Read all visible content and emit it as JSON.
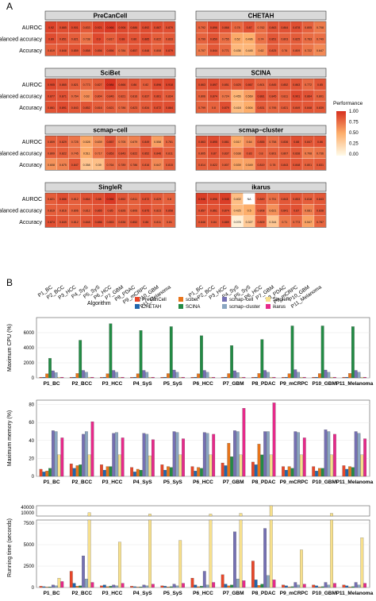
{
  "panel_labels": [
    "A",
    "B"
  ],
  "chart_data": [
    {
      "type": "heatmap",
      "id": "A",
      "row_labels": [
        "AUROC",
        "Balanced accuracy",
        "Accuracy"
      ],
      "col_labels": [
        "P1_BC",
        "P2_BCC",
        "P3_HCC",
        "P4_SyS",
        "P5_SyS",
        "P6_HCC",
        "P7_GBM",
        "P8_PDAC",
        "P9_mCRPC",
        "P10_GBM",
        "P11_Melanoma"
      ],
      "legend": {
        "title": "Performance",
        "ticks": [
          "1.00",
          "0.75",
          "0.50",
          "0.25",
          "0.00"
        ],
        "low_color": "#fffbe8",
        "high_color": "#d7301f"
      },
      "facets": [
        {
          "title": "PreCanCell",
          "values": [
            [
              0.92,
              0.885,
              0.901,
              0.833,
              0.921,
              0.966,
              0.906,
              0.886,
              0.892,
              0.887,
              0.879
            ],
            [
              0.89,
              0.851,
              0.821,
              0.738,
              0.9,
              0.817,
              0.88,
              0.86,
              0.885,
              0.822,
              0.833
            ],
            [
              0.819,
              0.848,
              0.859,
              0.858,
              0.856,
              0.856,
              0.784,
              0.857,
              0.848,
              0.808,
              0.879
            ]
          ]
        },
        {
          "title": "CHETAH",
          "values": [
            [
              0.792,
              0.896,
              0.868,
              0.78,
              0.87,
              0.762,
              0.863,
              0.864,
              0.878,
              0.805,
              0.708
            ],
            [
              0.799,
              0.859,
              0.755,
              0.52,
              0.496,
              0.74,
              0.851,
              0.803,
              0.825,
              0.763,
              0.749
            ],
            [
              0.707,
              0.844,
              0.771,
              0.436,
              0.445,
              0.62,
              0.825,
              0.76,
              0.809,
              0.722,
              0.647
            ]
          ]
        },
        {
          "title": "SciBet",
          "values": [
            [
              0.905,
              0.865,
              0.821,
              0.773,
              0.827,
              0.984,
              0.866,
              0.86,
              0.82,
              0.896,
              0.918
            ],
            [
              0.877,
              0.871,
              0.764,
              0.63,
              0.804,
              0.846,
              0.821,
              0.816,
              0.837,
              0.861,
              0.834
            ],
            [
              0.861,
              0.891,
              0.843,
              0.852,
              0.816,
              0.821,
              0.786,
              0.823,
              0.834,
              0.872,
              0.884
            ]
          ]
        },
        {
          "title": "SCINA",
          "values": [
            [
              0.863,
              0.897,
              0.851,
              0.825,
              0.867,
              0.801,
              0.845,
              0.852,
              0.863,
              0.772,
              0.85
            ],
            [
              0.806,
              0.874,
              0.724,
              0.455,
              0.569,
              0.881,
              0.845,
              0.811,
              0.901,
              0.864,
              0.801
            ],
            [
              0.799,
              0.8,
              0.879,
              0.418,
              0.504,
              0.831,
              0.795,
              0.821,
              0.849,
              0.848,
              0.839
            ]
          ]
        },
        {
          "title": "scmap−cell",
          "values": [
            [
              0.809,
              0.829,
              0.725,
              0.528,
              0.639,
              0.857,
              0.705,
              0.679,
              0.849,
              0.558,
              0.781
            ],
            [
              0.809,
              0.822,
              0.745,
              0.511,
              0.717,
              0.853,
              0.843,
              0.822,
              0.852,
              0.846,
              0.811
            ],
            [
              0.608,
              0.675,
              0.847,
              0.358,
              0.39,
              0.764,
              0.789,
              0.786,
              0.816,
              0.647,
              0.815
            ]
          ]
        },
        {
          "title": "scmap−cluster",
          "values": [
            [
              0.863,
              0.895,
              0.861,
              0.517,
              0.64,
              0.855,
              0.758,
              0.836,
              0.88,
              0.847,
              0.86
            ],
            [
              0.805,
              0.87,
              0.837,
              0.638,
              0.83,
              0.8,
              0.801,
              0.807,
              0.838,
              0.708,
              0.736
            ],
            [
              0.814,
              0.822,
              0.807,
              0.539,
              0.549,
              0.819,
              0.78,
              0.843,
              0.848,
              0.801,
              0.831
            ]
          ]
        },
        {
          "title": "SingleR",
          "values": [
            [
              0.821,
              0.886,
              0.812,
              0.864,
              0.88,
              0.966,
              0.852,
              0.811,
              0.872,
              0.829,
              0.8
            ],
            [
              0.819,
              0.816,
              0.806,
              0.812,
              0.865,
              0.85,
              0.826,
              0.806,
              0.875,
              0.823,
              0.858
            ],
            [
              0.874,
              0.849,
              0.812,
              0.848,
              0.886,
              0.853,
              0.836,
              0.852,
              0.86,
              0.811,
              0.81
            ]
          ]
        },
        {
          "title": "ikarus",
          "values": [
            [
              0.946,
              0.896,
              0.945,
              0.402,
              null,
              0.849,
              0.751,
              0.843,
              0.853,
              0.818,
              0.843
            ],
            [
              0.857,
              0.861,
              0.874,
              0.425,
              0.5,
              0.808,
              0.621,
              0.841,
              0.87,
              0.681,
              0.838
            ],
            [
              0.846,
              0.84,
              0.889,
              0.078,
              0.327,
              0.809,
              0.344,
              0.71,
              0.773,
              0.547,
              0.787
            ]
          ]
        }
      ]
    },
    {
      "type": "bar",
      "id": "B-cpu",
      "title": "",
      "ylabel": "Maximum CPU (%)",
      "ylim": [
        0,
        8000
      ],
      "yticks": [
        "0",
        "2000",
        "4000",
        "6000"
      ],
      "categories": [
        "P1_BC",
        "P2_BCC",
        "P3_HCC",
        "P4_SyS",
        "P5_SyS",
        "P6_HCC",
        "P7_GBM",
        "P8_PDAC",
        "P9_mCRPC",
        "P10_GBM",
        "P11_Melanoma"
      ],
      "series": [
        {
          "name": "PreCanCell",
          "color": "#e8472a",
          "values": [
            100,
            100,
            100,
            100,
            100,
            100,
            100,
            100,
            100,
            100,
            100
          ]
        },
        {
          "name": "CHETAH",
          "color": "#2166ac",
          "values": [
            100,
            100,
            100,
            100,
            100,
            100,
            100,
            100,
            100,
            100,
            100
          ]
        },
        {
          "name": "scibet",
          "color": "#e8741a",
          "values": [
            550,
            590,
            560,
            560,
            580,
            550,
            580,
            590,
            570,
            580,
            600
          ]
        },
        {
          "name": "SCINA",
          "color": "#238b45",
          "values": [
            2600,
            5000,
            7200,
            6300,
            6800,
            5600,
            4300,
            5100,
            6900,
            6900,
            6800
          ]
        },
        {
          "name": "scmap−cell",
          "color": "#7570b3",
          "values": [
            950,
            1000,
            1000,
            1000,
            1050,
            1000,
            950,
            1000,
            1100,
            1050,
            1000
          ]
        },
        {
          "name": "scmap−cluster",
          "color": "#8aa6c1",
          "values": [
            700,
            750,
            750,
            750,
            750,
            750,
            720,
            750,
            750,
            750,
            750
          ]
        },
        {
          "name": "SingleR",
          "color": "#f7e08d",
          "values": [
            100,
            100,
            100,
            100,
            100,
            100,
            100,
            100,
            100,
            100,
            100
          ]
        },
        {
          "name": "ikarus",
          "color": "#e7298a",
          "values": [
            100,
            100,
            100,
            100,
            100,
            100,
            100,
            100,
            100,
            100,
            100
          ]
        }
      ]
    },
    {
      "type": "bar",
      "id": "B-memory",
      "title": "",
      "ylabel": "Maximum memory (%)",
      "ylim": [
        0,
        85
      ],
      "yticks": [
        "0",
        "20",
        "40",
        "60",
        "80"
      ],
      "categories": [
        "P1_BC",
        "P2_BCC",
        "P3_HCC",
        "P4_SyS",
        "P5_SyS",
        "P6_HCC",
        "P7_GBM",
        "P8_PDAC",
        "P9_mCRPC",
        "P10_GBM",
        "P11_Melanoma"
      ],
      "series": [
        {
          "name": "PreCanCell",
          "color": "#e8472a",
          "values": [
            8,
            14,
            13,
            10,
            13,
            11,
            15,
            16,
            11,
            11,
            12
          ]
        },
        {
          "name": "CHETAH",
          "color": "#2166ac",
          "values": [
            5,
            9,
            7,
            5,
            7,
            6,
            12,
            13,
            7,
            6,
            8
          ]
        },
        {
          "name": "scibet",
          "color": "#e8741a",
          "values": [
            6,
            12,
            11,
            8,
            11,
            10,
            37,
            36,
            11,
            9,
            11
          ]
        },
        {
          "name": "SCINA",
          "color": "#238b45",
          "values": [
            9,
            13,
            11,
            7,
            10,
            9,
            22,
            24,
            9,
            9,
            10
          ]
        },
        {
          "name": "scmap−cell",
          "color": "#7570b3",
          "values": [
            51,
            47,
            48,
            48,
            50,
            49,
            51,
            50,
            50,
            52,
            50
          ]
        },
        {
          "name": "scmap−cluster",
          "color": "#8aa6c1",
          "values": [
            50,
            50,
            49,
            47,
            49,
            48,
            50,
            50,
            49,
            50,
            48
          ]
        },
        {
          "name": "SingleR",
          "color": "#f7e08d",
          "values": [
            24,
            24,
            24,
            23,
            24,
            24,
            24,
            24,
            24,
            24,
            24
          ]
        },
        {
          "name": "ikarus",
          "color": "#e7298a",
          "values": [
            43,
            61,
            43,
            41,
            42,
            47,
            76,
            82,
            43,
            47,
            42
          ]
        }
      ]
    },
    {
      "type": "bar",
      "id": "B-runtime",
      "title": "",
      "ylabel": "Running time (seconds)",
      "ylim": [
        0,
        11500
      ],
      "axis_break": [
        8000,
        10000
      ],
      "yticks": [
        "0",
        "2500",
        "5000",
        "7500",
        "10000",
        "40000"
      ],
      "categories": [
        "P1_BC",
        "P2_BCC",
        "P3_HCC",
        "P4_SyS",
        "P5_SyS",
        "P6_HCC",
        "P7_GBM",
        "P8_PDAC",
        "P9_mCRPC",
        "P10_GBM",
        "P11_Melanoma"
      ],
      "series": [
        {
          "name": "PreCanCell",
          "color": "#e8472a",
          "values": [
            150,
            1900,
            200,
            150,
            200,
            1100,
            1500,
            3100,
            300,
            300,
            300
          ]
        },
        {
          "name": "CHETAH",
          "color": "#2166ac",
          "values": [
            100,
            500,
            300,
            100,
            150,
            300,
            400,
            900,
            200,
            200,
            200
          ]
        },
        {
          "name": "scibet",
          "color": "#e8741a",
          "values": [
            60,
            150,
            100,
            60,
            80,
            100,
            200,
            250,
            80,
            80,
            80
          ]
        },
        {
          "name": "SCINA",
          "color": "#238b45",
          "values": [
            80,
            200,
            150,
            80,
            100,
            150,
            300,
            400,
            100,
            100,
            100
          ]
        },
        {
          "name": "scmap−cell",
          "color": "#7570b3",
          "values": [
            300,
            3700,
            300,
            300,
            400,
            1900,
            6500,
            6900,
            600,
            600,
            600
          ]
        },
        {
          "name": "scmap−cluster",
          "color": "#8aa6c1",
          "values": [
            200,
            1000,
            200,
            200,
            200,
            300,
            1000,
            1400,
            300,
            300,
            300
          ]
        },
        {
          "name": "SingleR",
          "color": "#f7e08d",
          "values": [
            1100,
            10500,
            5300,
            10300,
            5500,
            10300,
            10400,
            11500,
            4400,
            10400,
            5800
          ]
        },
        {
          "name": "ikarus",
          "color": "#e7298a",
          "values": [
            700,
            600,
            500,
            400,
            500,
            600,
            800,
            900,
            400,
            500,
            500
          ]
        }
      ]
    }
  ],
  "legend_b": {
    "title": "Algorithm",
    "entries": [
      {
        "name": "PreCanCell",
        "color": "#e8472a"
      },
      {
        "name": "scibet",
        "color": "#e8741a"
      },
      {
        "name": "scmap−cell",
        "color": "#7570b3"
      },
      {
        "name": "SingleR",
        "color": "#f7e08d"
      },
      {
        "name": "CHETAH",
        "color": "#2166ac"
      },
      {
        "name": "SCINA",
        "color": "#238b45"
      },
      {
        "name": "scmap−cluster",
        "color": "#8aa6c1"
      },
      {
        "name": "ikarus",
        "color": "#e7298a"
      }
    ]
  }
}
